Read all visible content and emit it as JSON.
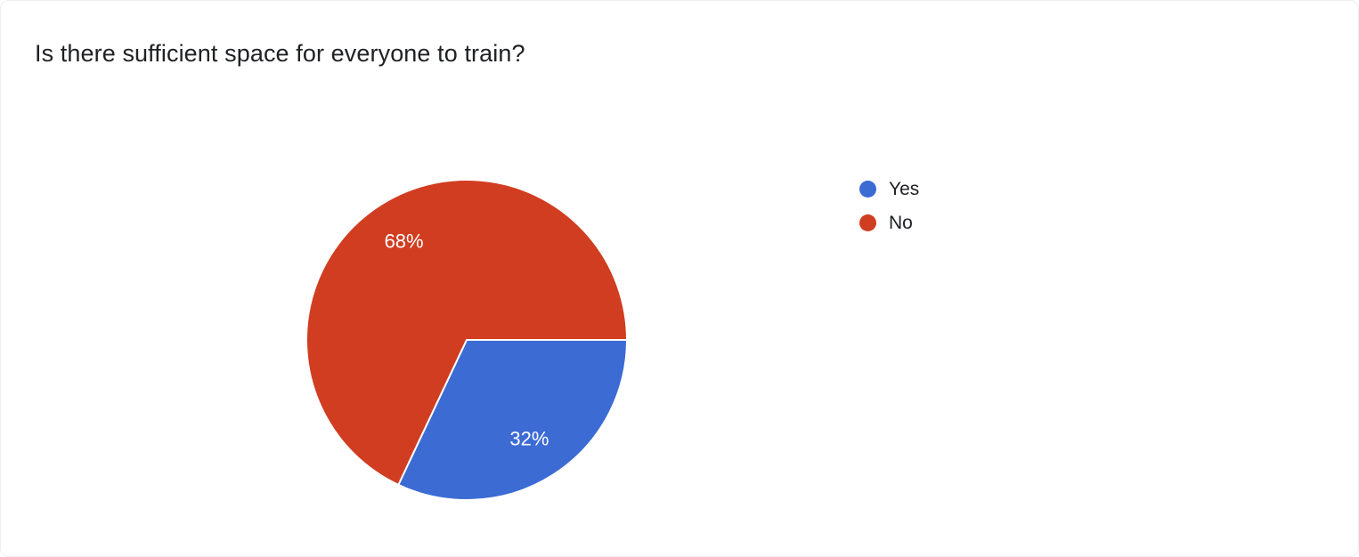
{
  "chart_data": {
    "type": "pie",
    "title": "Is there sufficient space for everyone to train?",
    "labels": [
      "Yes",
      "No"
    ],
    "values": [
      32,
      68
    ],
    "value_labels": [
      "32%",
      "68%"
    ],
    "colors": [
      "#3c6bd4",
      "#d13d21"
    ],
    "legend_position": "right",
    "start_angle_deg_clockwise_from_east": 0,
    "grid": false
  }
}
